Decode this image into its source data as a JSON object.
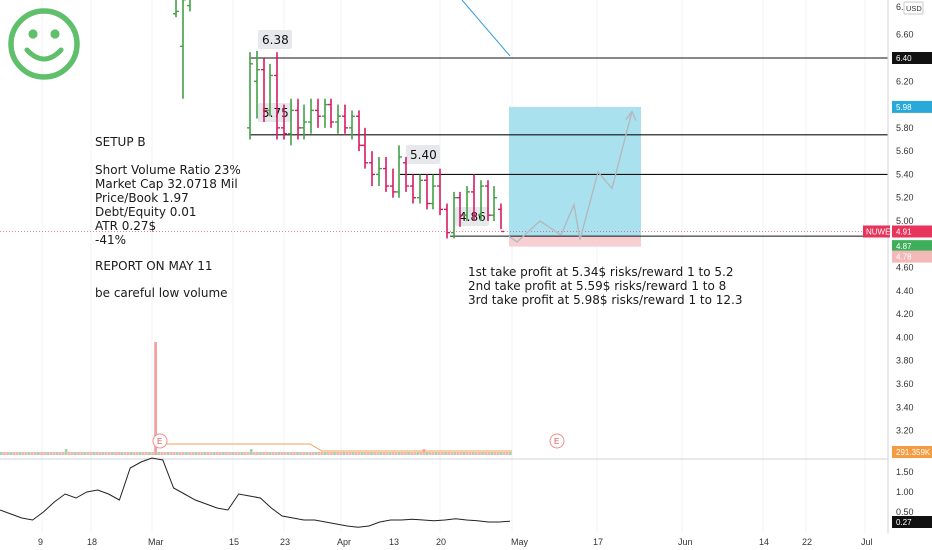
{
  "chart_data": {
    "type": "bar",
    "currency": "USD",
    "symbol": "NUWE",
    "price_axis": {
      "min": 2.9,
      "max": 6.95,
      "ticks": [
        "6.60",
        "6.40",
        "6.20",
        "6.00",
        "5.80",
        "5.60",
        "5.40",
        "5.20",
        "5.00",
        "4.80",
        "4.60",
        "4.40",
        "4.20",
        "4.00",
        "3.80",
        "3.60",
        "3.40",
        "3.20"
      ],
      "top_label": "6.8"
    },
    "osc_axis": {
      "min": -0.2,
      "max": 2.0,
      "ticks": [
        "1.50",
        "1.00",
        "0.50"
      ]
    },
    "x_ticks": [
      "9",
      "18",
      "Mar",
      "15",
      "23",
      "Apr",
      "13",
      "20",
      "May",
      "17",
      "Jun",
      "14",
      "22",
      "Jul"
    ],
    "bars": [
      {
        "o": 6.78,
        "h": 6.95,
        "l": 6.75,
        "c": 6.8
      },
      {
        "o": 6.5,
        "h": 6.95,
        "l": 6.05,
        "c": 6.9
      },
      {
        "o": 6.85,
        "h": 6.95,
        "l": 6.8,
        "c": 6.92
      },
      {
        "o": 5.8,
        "h": 6.45,
        "l": 5.7,
        "c": 6.35
      },
      {
        "o": 6.2,
        "h": 6.46,
        "l": 5.88,
        "c": 6.3
      },
      {
        "o": 6.3,
        "h": 6.4,
        "l": 5.85,
        "c": 5.95
      },
      {
        "o": 5.95,
        "h": 6.35,
        "l": 5.9,
        "c": 6.25
      },
      {
        "o": 6.25,
        "h": 6.45,
        "l": 5.7,
        "c": 5.8
      },
      {
        "o": 5.8,
        "h": 6.0,
        "l": 5.7,
        "c": 5.75
      },
      {
        "o": 5.75,
        "h": 6.05,
        "l": 5.65,
        "c": 5.95
      },
      {
        "o": 5.95,
        "h": 6.05,
        "l": 5.7,
        "c": 5.8
      },
      {
        "o": 5.8,
        "h": 6.0,
        "l": 5.7,
        "c": 5.85
      },
      {
        "o": 5.85,
        "h": 6.05,
        "l": 5.75,
        "c": 5.95
      },
      {
        "o": 5.95,
        "h": 6.05,
        "l": 5.8,
        "c": 5.9
      },
      {
        "o": 5.9,
        "h": 6.05,
        "l": 5.8,
        "c": 6.0
      },
      {
        "o": 6.0,
        "h": 6.05,
        "l": 5.8,
        "c": 5.85
      },
      {
        "o": 5.85,
        "h": 6.0,
        "l": 5.75,
        "c": 5.9
      },
      {
        "o": 5.9,
        "h": 6.0,
        "l": 5.75,
        "c": 5.8
      },
      {
        "o": 5.8,
        "h": 5.95,
        "l": 5.7,
        "c": 5.9
      },
      {
        "o": 5.9,
        "h": 5.95,
        "l": 5.6,
        "c": 5.65
      },
      {
        "o": 5.65,
        "h": 5.8,
        "l": 5.45,
        "c": 5.5
      },
      {
        "o": 5.5,
        "h": 5.6,
        "l": 5.3,
        "c": 5.4
      },
      {
        "o": 5.4,
        "h": 5.55,
        "l": 5.3,
        "c": 5.45
      },
      {
        "o": 5.45,
        "h": 5.55,
        "l": 5.25,
        "c": 5.3
      },
      {
        "o": 5.3,
        "h": 5.45,
        "l": 5.2,
        "c": 5.25
      },
      {
        "o": 5.25,
        "h": 5.65,
        "l": 5.2,
        "c": 5.55
      },
      {
        "o": 5.5,
        "h": 5.55,
        "l": 5.25,
        "c": 5.3
      },
      {
        "o": 5.3,
        "h": 5.4,
        "l": 5.15,
        "c": 5.2
      },
      {
        "o": 5.2,
        "h": 5.4,
        "l": 5.15,
        "c": 5.35
      },
      {
        "o": 5.35,
        "h": 5.4,
        "l": 5.1,
        "c": 5.15
      },
      {
        "o": 5.15,
        "h": 5.4,
        "l": 5.1,
        "c": 5.3
      },
      {
        "o": 5.3,
        "h": 5.45,
        "l": 5.05,
        "c": 5.1
      },
      {
        "o": 5.1,
        "h": 5.15,
        "l": 4.85,
        "c": 4.9
      },
      {
        "o": 4.9,
        "h": 5.25,
        "l": 4.85,
        "c": 5.2
      },
      {
        "o": 5.2,
        "h": 5.25,
        "l": 4.95,
        "c": 5.05
      },
      {
        "o": 5.05,
        "h": 5.3,
        "l": 5.0,
        "c": 5.25
      },
      {
        "o": 5.25,
        "h": 5.4,
        "l": 5.0,
        "c": 5.05
      },
      {
        "o": 5.05,
        "h": 5.35,
        "l": 5.0,
        "c": 5.3
      },
      {
        "o": 5.3,
        "h": 5.35,
        "l": 5.0,
        "c": 5.05
      },
      {
        "o": 5.05,
        "h": 5.3,
        "l": 5.0,
        "c": 5.2
      },
      {
        "o": 5.1,
        "h": 5.15,
        "l": 4.93,
        "c": 4.91
      }
    ],
    "volume": [
      1,
      1,
      1,
      1,
      1,
      1,
      1,
      1,
      1,
      1,
      1,
      1,
      1,
      1,
      1,
      1,
      1,
      1,
      1,
      1,
      1,
      2,
      1,
      1,
      1,
      1,
      1,
      1,
      1,
      1,
      1,
      1,
      1,
      1,
      1,
      1,
      1,
      1,
      1,
      1,
      1,
      1,
      1,
      1,
      1,
      1,
      1,
      1,
      1,
      1,
      28,
      1,
      1,
      1,
      1,
      1,
      1,
      1,
      1,
      1,
      1,
      1,
      1,
      1,
      1,
      1,
      1,
      1,
      1,
      1,
      1,
      1,
      1,
      1,
      1,
      1,
      1,
      1,
      1,
      1,
      1,
      2,
      1,
      1,
      1,
      1,
      1,
      1,
      1,
      1,
      1,
      1,
      1,
      1,
      1,
      1,
      1,
      1,
      1,
      1,
      1,
      1,
      1,
      1,
      1,
      1,
      1,
      1,
      1,
      1,
      1,
      1,
      1,
      1,
      1,
      1,
      1,
      1,
      1,
      1,
      1,
      1,
      1,
      1,
      1,
      1,
      1,
      1,
      1,
      1,
      1,
      1,
      1,
      1,
      1,
      1,
      1,
      2,
      1,
      1,
      1,
      1,
      1,
      1,
      1,
      1,
      1,
      1,
      1,
      1,
      1,
      1,
      1,
      1,
      1,
      1,
      1,
      1,
      1,
      1,
      1,
      1,
      1,
      1,
      1,
      1
    ],
    "oscillator": [
      0.55,
      0.45,
      0.35,
      0.3,
      0.5,
      0.75,
      0.95,
      0.85,
      1.0,
      1.05,
      0.95,
      0.8,
      1.6,
      1.75,
      1.85,
      1.8,
      1.1,
      0.95,
      0.8,
      0.7,
      0.6,
      0.55,
      0.95,
      0.9,
      0.85,
      0.6,
      0.4,
      0.35,
      0.3,
      0.3,
      0.25,
      0.2,
      0.15,
      0.12,
      0.15,
      0.25,
      0.3,
      0.3,
      0.32,
      0.3,
      0.28,
      0.3,
      0.33,
      0.3,
      0.28,
      0.25,
      0.25,
      0.27
    ],
    "levels": [
      {
        "label": "6.38",
        "value": 6.4
      },
      {
        "label": "5.75",
        "value": 5.74
      },
      {
        "label": "5.40",
        "value": 5.4
      },
      {
        "label": "4.86",
        "value": 4.87
      }
    ],
    "axis_tags": [
      {
        "label": "6.40",
        "value": 6.4,
        "color": "#111111"
      },
      {
        "label": "5.98",
        "value": 5.98,
        "color": "#29a9d9"
      },
      {
        "label": "4.91",
        "value": 4.91,
        "color": "#e8335a",
        "name": "NUWE"
      },
      {
        "label": "4.87",
        "value": 4.87,
        "color": "#3fae5a"
      },
      {
        "label": "4.78",
        "value": 4.78,
        "color": "#f3b8b8"
      },
      {
        "label": "291.359K",
        "value": 0,
        "color": "#f59b42"
      },
      {
        "label": "0.27",
        "value": 0.27,
        "color": "#111111"
      }
    ],
    "position": {
      "entry": 4.87,
      "target": 5.98,
      "stop": 4.78
    },
    "projection": [
      4.87,
      4.82,
      5.0,
      4.88,
      5.14,
      4.84,
      5.42,
      5.28,
      5.94
    ],
    "earnings_marker": "E",
    "annotations": {
      "setup": [
        "SETUP B",
        "",
        "Short Volume Ratio 23%",
        "Market Cap 32.0718 Mil",
        "Price/Book 1.97",
        "Debt/Equity 0.01",
        "ATR 0.27$",
        "-41%",
        "",
        "REPORT ON MAY 11",
        "",
        "be careful low volume"
      ],
      "targets": [
        "1st take profit at 5.34$ risks/reward 1 to 5.2",
        "2nd take profit at 5.59$ risks/reward 1 to 8",
        "3rd take profit at 5.98$ risks/reward 1 to 12.3"
      ]
    }
  }
}
